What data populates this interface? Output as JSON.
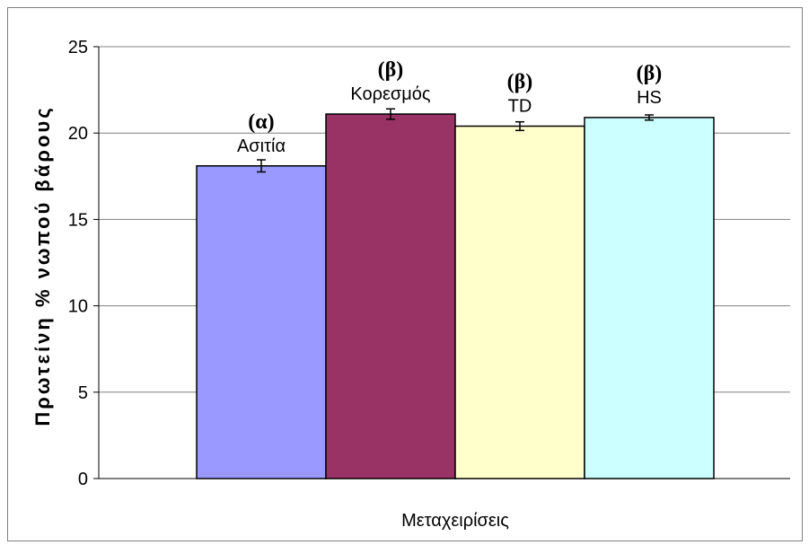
{
  "chart_data": {
    "type": "bar",
    "title": "",
    "xlabel": "Μεταχειρίσεις",
    "ylabel": "Πρωτείνη % νωπού βάρους",
    "ylim": [
      0,
      25
    ],
    "yticks": [
      0,
      5,
      10,
      15,
      20,
      25
    ],
    "grid": true,
    "legend": "none",
    "categories": [
      "Ασιτία",
      "Κορεσμός",
      "TD",
      "HS"
    ],
    "values": [
      18.1,
      21.1,
      20.4,
      20.9
    ],
    "errors": [
      0.35,
      0.3,
      0.25,
      0.15
    ],
    "significance": [
      "(α)",
      "(β)",
      "(β)",
      "(β)"
    ],
    "colors": [
      "#9999ff",
      "#993366",
      "#ffffcc",
      "#ccffff"
    ]
  }
}
